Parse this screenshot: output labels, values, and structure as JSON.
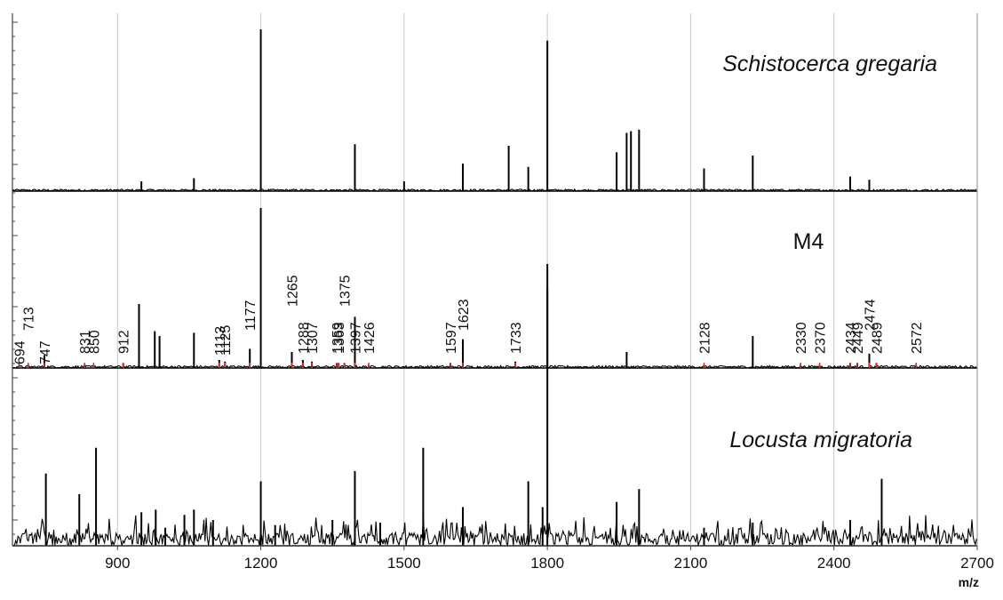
{
  "chart_data": {
    "type": "line",
    "xlabel": "m/z",
    "ylabel": "",
    "xlim": [
      680,
      2700
    ],
    "grid": true,
    "x_ticks": [
      900,
      1200,
      1500,
      1800,
      2100,
      2400,
      2700
    ],
    "series": [
      {
        "name": "Schistocerca gregaria",
        "italic": true,
        "color": "#000000",
        "peaks": [
          {
            "x": 950,
            "y": 0.06
          },
          {
            "x": 1060,
            "y": 0.08
          },
          {
            "x": 1200,
            "y": 1.0
          },
          {
            "x": 1397,
            "y": 0.29
          },
          {
            "x": 1500,
            "y": 0.06
          },
          {
            "x": 1623,
            "y": 0.17
          },
          {
            "x": 1719,
            "y": 0.28
          },
          {
            "x": 1760,
            "y": 0.15
          },
          {
            "x": 1800,
            "y": 0.93
          },
          {
            "x": 1945,
            "y": 0.24
          },
          {
            "x": 1966,
            "y": 0.36
          },
          {
            "x": 1975,
            "y": 0.37
          },
          {
            "x": 1992,
            "y": 0.38
          },
          {
            "x": 2128,
            "y": 0.14
          },
          {
            "x": 2230,
            "y": 0.22
          },
          {
            "x": 2434,
            "y": 0.09
          },
          {
            "x": 2474,
            "y": 0.07
          }
        ]
      },
      {
        "name": "M4",
        "italic": false,
        "color": "#000000",
        "peaks": [
          {
            "x": 694,
            "y": 0.02
          },
          {
            "x": 713,
            "y": 0.02
          },
          {
            "x": 747,
            "y": 0.08
          },
          {
            "x": 831,
            "y": 0.02
          },
          {
            "x": 850,
            "y": 0.02
          },
          {
            "x": 912,
            "y": 0.03
          },
          {
            "x": 945,
            "y": 0.4
          },
          {
            "x": 978,
            "y": 0.23
          },
          {
            "x": 988,
            "y": 0.2
          },
          {
            "x": 1060,
            "y": 0.22
          },
          {
            "x": 1113,
            "y": 0.05
          },
          {
            "x": 1125,
            "y": 0.04
          },
          {
            "x": 1177,
            "y": 0.12
          },
          {
            "x": 1200,
            "y": 1.0
          },
          {
            "x": 1265,
            "y": 0.1
          },
          {
            "x": 1288,
            "y": 0.05
          },
          {
            "x": 1307,
            "y": 0.04
          },
          {
            "x": 1359,
            "y": 0.03
          },
          {
            "x": 1363,
            "y": 0.03
          },
          {
            "x": 1375,
            "y": 0.03
          },
          {
            "x": 1397,
            "y": 0.32
          },
          {
            "x": 1426,
            "y": 0.02
          },
          {
            "x": 1597,
            "y": 0.03
          },
          {
            "x": 1623,
            "y": 0.18
          },
          {
            "x": 1733,
            "y": 0.04
          },
          {
            "x": 1800,
            "y": 0.65
          },
          {
            "x": 1966,
            "y": 0.1
          },
          {
            "x": 2128,
            "y": 0.02
          },
          {
            "x": 2230,
            "y": 0.2
          },
          {
            "x": 2330,
            "y": 0.02
          },
          {
            "x": 2370,
            "y": 0.02
          },
          {
            "x": 2434,
            "y": 0.03
          },
          {
            "x": 2449,
            "y": 0.03
          },
          {
            "x": 2474,
            "y": 0.09
          },
          {
            "x": 2489,
            "y": 0.03
          },
          {
            "x": 2572,
            "y": 0.02
          }
        ]
      },
      {
        "name": "Locusta migratoria",
        "italic": true,
        "color": "#000000",
        "peaks": [
          {
            "x": 750,
            "y": 0.28
          },
          {
            "x": 820,
            "y": 0.2
          },
          {
            "x": 855,
            "y": 0.38
          },
          {
            "x": 950,
            "y": 0.13
          },
          {
            "x": 980,
            "y": 0.14
          },
          {
            "x": 1000,
            "y": 0.07
          },
          {
            "x": 1040,
            "y": 0.12
          },
          {
            "x": 1060,
            "y": 0.14
          },
          {
            "x": 1100,
            "y": 0.1
          },
          {
            "x": 1200,
            "y": 0.25
          },
          {
            "x": 1230,
            "y": 0.08
          },
          {
            "x": 1350,
            "y": 0.1
          },
          {
            "x": 1397,
            "y": 0.29
          },
          {
            "x": 1450,
            "y": 0.09
          },
          {
            "x": 1540,
            "y": 0.38
          },
          {
            "x": 1623,
            "y": 0.15
          },
          {
            "x": 1760,
            "y": 0.25
          },
          {
            "x": 1790,
            "y": 0.15
          },
          {
            "x": 1800,
            "y": 1.0
          },
          {
            "x": 1945,
            "y": 0.17
          },
          {
            "x": 1992,
            "y": 0.22
          },
          {
            "x": 2128,
            "y": 0.07
          },
          {
            "x": 2230,
            "y": 0.09
          },
          {
            "x": 2434,
            "y": 0.1
          },
          {
            "x": 2500,
            "y": 0.26
          }
        ]
      }
    ],
    "annotations": {
      "M4": [
        {
          "text": "694",
          "x": 694
        },
        {
          "text": "713",
          "x": 713
        },
        {
          "text": "747",
          "x": 747
        },
        {
          "text": "831",
          "x": 831
        },
        {
          "text": "850",
          "x": 850
        },
        {
          "text": "912",
          "x": 912
        },
        {
          "text": "1113",
          "x": 1113
        },
        {
          "text": "1125",
          "x": 1125
        },
        {
          "text": "1177",
          "x": 1177
        },
        {
          "text": "1265",
          "x": 1265
        },
        {
          "text": "1288",
          "x": 1288
        },
        {
          "text": "1307",
          "x": 1307
        },
        {
          "text": "1359",
          "x": 1359
        },
        {
          "text": "1363",
          "x": 1363
        },
        {
          "text": "1375",
          "x": 1375
        },
        {
          "text": "1397",
          "x": 1397
        },
        {
          "text": "1426",
          "x": 1426
        },
        {
          "text": "1597",
          "x": 1597
        },
        {
          "text": "1623",
          "x": 1623
        },
        {
          "text": "1733",
          "x": 1733
        },
        {
          "text": "2128",
          "x": 2128
        },
        {
          "text": "2330",
          "x": 2330
        },
        {
          "text": "2370",
          "x": 2370
        },
        {
          "text": "2434",
          "x": 2434
        },
        {
          "text": "2449",
          "x": 2449
        },
        {
          "text": "2474",
          "x": 2474
        },
        {
          "text": "2489",
          "x": 2489
        },
        {
          "text": "2572",
          "x": 2572
        }
      ]
    },
    "colors": {
      "marker": "#e0302a",
      "grid": "#c8c8c8",
      "trace": "#000000"
    }
  }
}
